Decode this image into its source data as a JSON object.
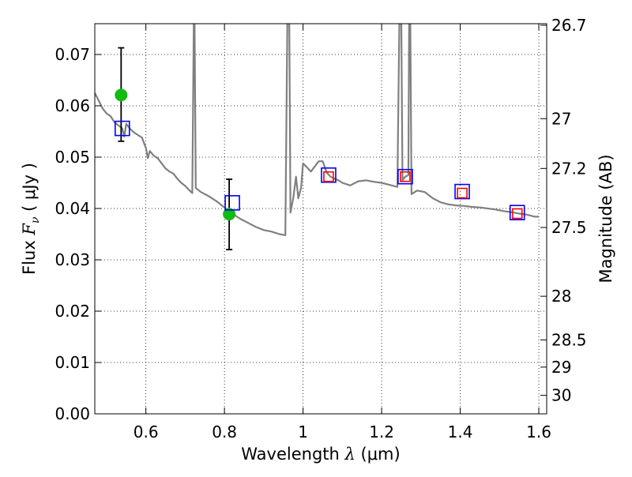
{
  "chart_data": {
    "type": "line",
    "xlim": [
      0.47,
      1.62
    ],
    "ylim": [
      0.0,
      0.076
    ],
    "grid": true,
    "x_ticks": [
      0.6,
      0.8,
      1.0,
      1.2,
      1.4,
      1.6
    ],
    "x_tick_labels": [
      "0.6",
      "0.8",
      "1",
      "1.2",
      "1.4",
      "1.6"
    ],
    "y_ticks": [
      0.0,
      0.01,
      0.02,
      0.03,
      0.04,
      0.05,
      0.06,
      0.07
    ],
    "y_tick_labels": [
      "0.00",
      "0.01",
      "0.02",
      "0.03",
      "0.04",
      "0.05",
      "0.06",
      "0.07"
    ],
    "xlabel": {
      "prefix": "Wavelength  ",
      "symbol": "λ",
      "units": " (μm)"
    },
    "ylabel": {
      "prefix": "Flux  ",
      "symbol": "F",
      "subscript": "ν",
      "units": " ( μJy )"
    },
    "y2label": "Magnitude (AB)",
    "y2_ticks": [
      {
        "label": "26.7",
        "flux": 0.0757
      },
      {
        "label": "27",
        "flux": 0.0575
      },
      {
        "label": "27.2",
        "flux": 0.0478
      },
      {
        "label": "27.5",
        "flux": 0.0363
      },
      {
        "label": "28",
        "flux": 0.0229
      },
      {
        "label": "28.5",
        "flux": 0.0144
      },
      {
        "label": "29",
        "flux": 0.0091
      },
      {
        "label": "30",
        "flux": 0.0036
      }
    ],
    "series": [
      {
        "name": "model_spectrum",
        "style": "line",
        "color": "#808080",
        "points": [
          [
            0.47,
            0.0625
          ],
          [
            0.48,
            0.061
          ],
          [
            0.49,
            0.0595
          ],
          [
            0.5,
            0.0585
          ],
          [
            0.51,
            0.058
          ],
          [
            0.52,
            0.0568
          ],
          [
            0.53,
            0.0562
          ],
          [
            0.54,
            0.0556
          ],
          [
            0.545,
            0.054
          ],
          [
            0.55,
            0.0565
          ],
          [
            0.56,
            0.0555
          ],
          [
            0.57,
            0.0548
          ],
          [
            0.58,
            0.0543
          ],
          [
            0.59,
            0.0538
          ],
          [
            0.6,
            0.0518
          ],
          [
            0.605,
            0.0498
          ],
          [
            0.61,
            0.0512
          ],
          [
            0.62,
            0.0503
          ],
          [
            0.63,
            0.0498
          ],
          [
            0.64,
            0.0488
          ],
          [
            0.65,
            0.0478
          ],
          [
            0.66,
            0.0472
          ],
          [
            0.67,
            0.0468
          ],
          [
            0.68,
            0.0458
          ],
          [
            0.69,
            0.045
          ],
          [
            0.7,
            0.0444
          ],
          [
            0.71,
            0.0436
          ],
          [
            0.718,
            0.043
          ],
          [
            0.722,
            0.076
          ],
          [
            0.724,
            0.076
          ],
          [
            0.727,
            0.044
          ],
          [
            0.74,
            0.0432
          ],
          [
            0.76,
            0.0424
          ],
          [
            0.78,
            0.0414
          ],
          [
            0.8,
            0.0402
          ],
          [
            0.82,
            0.039
          ],
          [
            0.84,
            0.038
          ],
          [
            0.86,
            0.0372
          ],
          [
            0.88,
            0.0364
          ],
          [
            0.9,
            0.0358
          ],
          [
            0.92,
            0.0355
          ],
          [
            0.94,
            0.035
          ],
          [
            0.955,
            0.0348
          ],
          [
            0.96,
            0.076
          ],
          [
            0.965,
            0.076
          ],
          [
            0.968,
            0.0392
          ],
          [
            0.975,
            0.042
          ],
          [
            0.982,
            0.0462
          ],
          [
            0.988,
            0.042
          ],
          [
            0.995,
            0.044
          ],
          [
            1.0,
            0.0488
          ],
          [
            1.01,
            0.048
          ],
          [
            1.02,
            0.0472
          ],
          [
            1.03,
            0.0482
          ],
          [
            1.04,
            0.0492
          ],
          [
            1.05,
            0.0492
          ],
          [
            1.06,
            0.047
          ],
          [
            1.07,
            0.0462
          ],
          [
            1.08,
            0.0458
          ],
          [
            1.09,
            0.0455
          ],
          [
            1.1,
            0.045
          ],
          [
            1.12,
            0.0445
          ],
          [
            1.14,
            0.0453
          ],
          [
            1.16,
            0.0455
          ],
          [
            1.18,
            0.0452
          ],
          [
            1.2,
            0.045
          ],
          [
            1.22,
            0.0446
          ],
          [
            1.24,
            0.0442
          ],
          [
            1.245,
            0.076
          ],
          [
            1.25,
            0.076
          ],
          [
            1.253,
            0.0455
          ],
          [
            1.26,
            0.0462
          ],
          [
            1.268,
            0.0465
          ],
          [
            1.27,
            0.076
          ],
          [
            1.273,
            0.076
          ],
          [
            1.276,
            0.0428
          ],
          [
            1.29,
            0.0435
          ],
          [
            1.31,
            0.0432
          ],
          [
            1.33,
            0.042
          ],
          [
            1.35,
            0.0412
          ],
          [
            1.37,
            0.0408
          ],
          [
            1.39,
            0.0406
          ],
          [
            1.41,
            0.0405
          ],
          [
            1.43,
            0.0403
          ],
          [
            1.45,
            0.0402
          ],
          [
            1.47,
            0.04
          ],
          [
            1.49,
            0.0398
          ],
          [
            1.51,
            0.0395
          ],
          [
            1.53,
            0.0393
          ],
          [
            1.55,
            0.039
          ],
          [
            1.57,
            0.0388
          ],
          [
            1.59,
            0.0384
          ],
          [
            1.6,
            0.0384
          ]
        ]
      },
      {
        "name": "observed",
        "style": "circle",
        "color": "#11bb11",
        "x": [
          0.537,
          0.812
        ],
        "y": [
          0.0621,
          0.0389
        ],
        "yerr_low": [
          0.0531,
          0.032
        ],
        "yerr_high": [
          0.0713,
          0.0457
        ]
      },
      {
        "name": "model_photometry",
        "style": "open-square",
        "color": "#0000ff",
        "x": [
          0.54,
          0.82,
          1.065,
          1.26,
          1.405,
          1.545
        ],
        "y": [
          0.0556,
          0.0411,
          0.0465,
          0.0462,
          0.0433,
          0.0392
        ]
      },
      {
        "name": "photometry_small",
        "style": "open-square",
        "color": "#ff0000",
        "x": [
          1.065,
          1.26,
          1.405,
          1.545
        ],
        "y": [
          0.0462,
          0.0462,
          0.043,
          0.039
        ]
      }
    ]
  }
}
